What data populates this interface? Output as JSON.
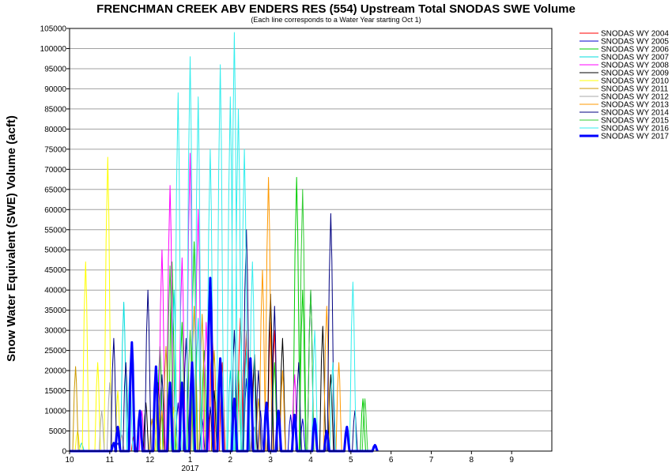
{
  "chart_data": {
    "type": "line",
    "title": "FRENCHMAN CREEK ABV ENDERS RES (554) Upstream Total SNODAS SWE Volume",
    "subtitle": "(Each line corresponds to a Water Year starting Oct 1)",
    "ylabel": "Snow Water Equivalent (SWE) Volume (acft)",
    "ylim": [
      0,
      105000
    ],
    "yticks": [
      0,
      5000,
      10000,
      15000,
      20000,
      25000,
      30000,
      35000,
      40000,
      45000,
      50000,
      55000,
      60000,
      65000,
      70000,
      75000,
      80000,
      85000,
      90000,
      95000,
      100000,
      105000
    ],
    "xlim": [
      0,
      12
    ],
    "xticks": [
      {
        "x": 0,
        "label": "10"
      },
      {
        "x": 1,
        "label": "11"
      },
      {
        "x": 2,
        "label": "12"
      },
      {
        "x": 3,
        "label": "1"
      },
      {
        "x": 4,
        "label": "2"
      },
      {
        "x": 5,
        "label": "3"
      },
      {
        "x": 6,
        "label": "4"
      },
      {
        "x": 7,
        "label": "5"
      },
      {
        "x": 8,
        "label": "6"
      },
      {
        "x": 9,
        "label": "7"
      },
      {
        "x": 10,
        "label": "8"
      },
      {
        "x": 11,
        "label": "9"
      }
    ],
    "xyear": {
      "x": 3,
      "label": "2017"
    },
    "grid": true,
    "legend_position": "top-right",
    "series": [
      {
        "name": "SNODAS WY 2004",
        "color": "#ff0000",
        "width": 1,
        "peaks": [
          [
            1.6,
            4000
          ],
          [
            3.55,
            30000
          ],
          [
            3.8,
            22000
          ],
          [
            4.25,
            33000
          ],
          [
            4.4,
            30000
          ],
          [
            4.6,
            22000
          ],
          [
            5.0,
            32000
          ],
          [
            5.1,
            30000
          ]
        ]
      },
      {
        "name": "SNODAS WY 2005",
        "color": "#0000cc",
        "width": 1,
        "peaks": [
          [
            1.2,
            2000
          ],
          [
            2.7,
            12000
          ],
          [
            3.3,
            8000
          ],
          [
            4.4,
            18000
          ],
          [
            4.75,
            10000
          ],
          [
            5.5,
            9000
          ],
          [
            5.8,
            8000
          ]
        ]
      },
      {
        "name": "SNODAS WY 2006",
        "color": "#00cc00",
        "width": 1,
        "peaks": [
          [
            2.25,
            26000
          ],
          [
            2.55,
            47000
          ],
          [
            2.8,
            32000
          ],
          [
            3.1,
            52000
          ],
          [
            3.35,
            25000
          ],
          [
            5.1,
            22000
          ],
          [
            5.65,
            68000
          ],
          [
            5.8,
            40000
          ],
          [
            7.3,
            13000
          ]
        ]
      },
      {
        "name": "SNODAS WY 2007",
        "color": "#00dddd",
        "width": 1,
        "peaks": [
          [
            0.3,
            2000
          ],
          [
            1.35,
            37000
          ],
          [
            2.6,
            40000
          ],
          [
            3.2,
            33000
          ],
          [
            4.0,
            20000
          ],
          [
            4.4,
            25000
          ]
        ]
      },
      {
        "name": "SNODAS WY 2008",
        "color": "#ff00ff",
        "width": 1,
        "peaks": [
          [
            1.8,
            10000
          ],
          [
            2.3,
            50000
          ],
          [
            2.5,
            66000
          ],
          [
            2.8,
            48000
          ],
          [
            3.0,
            74000
          ],
          [
            3.2,
            60000
          ],
          [
            3.4,
            32000
          ],
          [
            5.6,
            19000
          ]
        ]
      },
      {
        "name": "SNODAS WY 2009",
        "color": "#000000",
        "width": 1,
        "peaks": [
          [
            1.9,
            12000
          ],
          [
            2.2,
            17000
          ],
          [
            3.6,
            15000
          ],
          [
            4.6,
            24000
          ],
          [
            5.0,
            39000
          ],
          [
            5.3,
            28000
          ],
          [
            6.3,
            31000
          ],
          [
            6.5,
            19000
          ]
        ]
      },
      {
        "name": "SNODAS WY 2010",
        "color": "#ffff00",
        "width": 1,
        "peaks": [
          [
            0.2,
            5000
          ],
          [
            0.4,
            47000
          ],
          [
            0.7,
            22000
          ],
          [
            0.95,
            73000
          ],
          [
            1.2,
            15000
          ],
          [
            2.2,
            15000
          ],
          [
            2.6,
            11000
          ]
        ]
      },
      {
        "name": "SNODAS WY 2011",
        "color": "#cc9900",
        "width": 1,
        "peaks": [
          [
            0.15,
            21000
          ],
          [
            2.05,
            8000
          ],
          [
            2.4,
            26000
          ],
          [
            3.1,
            36000
          ],
          [
            3.3,
            34000
          ],
          [
            3.6,
            25000
          ],
          [
            4.7,
            13000
          ]
        ]
      },
      {
        "name": "SNODAS WY 2012",
        "color": "#aaaaaa",
        "width": 1,
        "peaks": [
          [
            0.8,
            10000
          ],
          [
            1.0,
            17000
          ],
          [
            1.3,
            4000
          ],
          [
            2.8,
            12000
          ],
          [
            4.6,
            6000
          ]
        ]
      },
      {
        "name": "SNODAS WY 2013",
        "color": "#ff9900",
        "width": 1,
        "peaks": [
          [
            2.3,
            10000
          ],
          [
            4.8,
            45000
          ],
          [
            4.95,
            68000
          ],
          [
            5.3,
            20000
          ],
          [
            6.4,
            36000
          ],
          [
            6.7,
            22000
          ]
        ]
      },
      {
        "name": "SNODAS WY 2014",
        "color": "#000080",
        "width": 1,
        "peaks": [
          [
            1.1,
            28000
          ],
          [
            1.4,
            22000
          ],
          [
            1.95,
            40000
          ],
          [
            2.3,
            19000
          ],
          [
            2.9,
            28000
          ],
          [
            3.5,
            11000
          ],
          [
            4.1,
            30000
          ],
          [
            4.4,
            55000
          ],
          [
            4.7,
            20000
          ],
          [
            5.1,
            36000
          ],
          [
            5.7,
            22000
          ],
          [
            6.0,
            40000
          ],
          [
            6.5,
            59000
          ],
          [
            7.1,
            10000
          ]
        ]
      },
      {
        "name": "SNODAS WY 2015",
        "color": "#33cc33",
        "width": 1,
        "peaks": [
          [
            2.5,
            46000
          ],
          [
            3.0,
            30000
          ],
          [
            4.2,
            20000
          ],
          [
            5.8,
            65000
          ],
          [
            6.0,
            40000
          ],
          [
            7.35,
            13000
          ]
        ]
      },
      {
        "name": "SNODAS WY 2016",
        "color": "#33eeee",
        "width": 1,
        "peaks": [
          [
            1.5,
            20000
          ],
          [
            2.7,
            89000
          ],
          [
            3.0,
            98000
          ],
          [
            3.2,
            88000
          ],
          [
            3.5,
            75000
          ],
          [
            3.75,
            96000
          ],
          [
            4.0,
            88000
          ],
          [
            4.1,
            104000
          ],
          [
            4.2,
            85000
          ],
          [
            4.35,
            75000
          ],
          [
            4.55,
            47000
          ],
          [
            6.1,
            30000
          ],
          [
            6.55,
            22000
          ],
          [
            7.05,
            42000
          ]
        ]
      },
      {
        "name": "SNODAS WY 2017",
        "color": "#0000ff",
        "width": 3,
        "peaks": [
          [
            1.1,
            2000
          ],
          [
            1.2,
            6000
          ],
          [
            1.55,
            27000
          ],
          [
            1.75,
            10000
          ],
          [
            2.15,
            21000
          ],
          [
            2.5,
            17000
          ],
          [
            2.8,
            17000
          ],
          [
            3.05,
            22000
          ],
          [
            3.5,
            43000
          ],
          [
            3.75,
            23000
          ],
          [
            4.1,
            13000
          ],
          [
            4.5,
            23000
          ],
          [
            4.9,
            12000
          ],
          [
            5.2,
            10000
          ],
          [
            5.6,
            9000
          ],
          [
            6.1,
            8000
          ],
          [
            6.4,
            5000
          ],
          [
            6.9,
            6000
          ],
          [
            7.6,
            1500
          ]
        ]
      }
    ]
  }
}
